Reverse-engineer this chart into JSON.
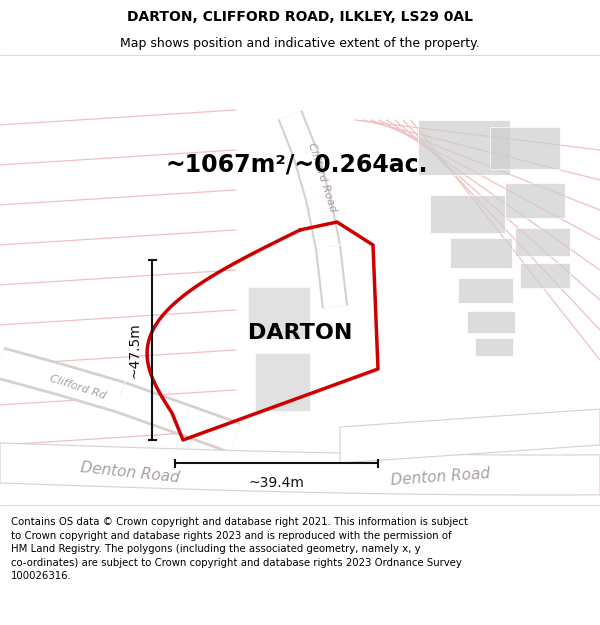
{
  "title_line1": "DARTON, CLIFFORD ROAD, ILKLEY, LS29 0AL",
  "title_line2": "Map shows position and indicative extent of the property.",
  "area_label": "~1067m²/~0.264ac.",
  "property_label": "DARTON",
  "dim_vertical": "~47.5m",
  "dim_horizontal": "~39.4m",
  "road_label_clifford_diag": "Clifford Road",
  "road_label_clifford_left": "Clifford Rd",
  "road_label_denton_left": "Denton Road",
  "road_label_denton_right": "Denton Road",
  "copyright_text": "Contains OS data © Crown copyright and database right 2021. This information is subject\nto Crown copyright and database rights 2023 and is reproduced with the permission of\nHM Land Registry. The polygons (including the associated geometry, namely x, y\nco-ordinates) are subject to Crown copyright and database rights 2023 Ordnance Survey\n100026316.",
  "bg_color": "#f2f0f0",
  "road_fill": "#ffffff",
  "road_edge": "#d8d0d0",
  "red_color": "#cc0000",
  "gray_light": "#cecece",
  "light_pink": "#f0c0c0",
  "road_text_color": "#aaa0a0",
  "dim_color": "#111111",
  "figsize": [
    6.0,
    6.25
  ],
  "dpi": 100,
  "map_xlim": [
    0,
    600
  ],
  "map_ylim": [
    0,
    450
  ]
}
